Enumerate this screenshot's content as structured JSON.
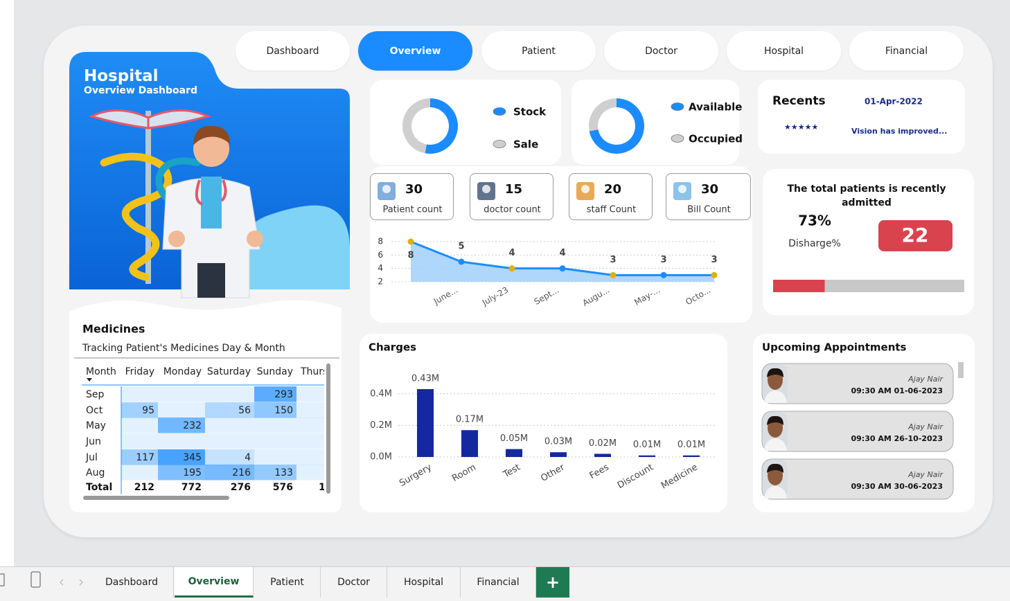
{
  "nav": {
    "tabs": [
      "Dashboard",
      "Overview",
      "Patient",
      "Doctor",
      "Hospital",
      "Financial"
    ],
    "active": 1
  },
  "hero": {
    "title": "Hospital",
    "subtitle": "Overview Dashboard"
  },
  "stock_donut": {
    "type": "donut",
    "categories": [
      "Stock",
      "Sale"
    ],
    "values": [
      53,
      47
    ],
    "colors": [
      "#1a8cff",
      "#cfcfcf"
    ]
  },
  "bed_donut": {
    "type": "donut",
    "categories": [
      "Available",
      "Occupied"
    ],
    "values": [
      72,
      28
    ],
    "colors": [
      "#1a8cff",
      "#cfcfcf"
    ]
  },
  "recents": {
    "title": "Recents",
    "date": "01-Apr-2022",
    "rating": "★★★★★",
    "note": "Vision has improved..."
  },
  "kpis": [
    {
      "value": 30,
      "label": "Patient count"
    },
    {
      "value": 15,
      "label": "doctor count"
    },
    {
      "value": 20,
      "label": "staff Count"
    },
    {
      "value": 30,
      "label": "Bill Count"
    }
  ],
  "trend_chart": {
    "type": "line",
    "categories": [
      null,
      "June...",
      "July-23",
      "Sept...",
      "Augu...",
      "May-...",
      "Octo..."
    ],
    "values": [
      8,
      5,
      4,
      4,
      3,
      3,
      3
    ],
    "color": "#1a8cff",
    "point_colors": [
      "#e0b000",
      "#1a8cff",
      "#e0b000",
      "#1a8cff",
      "#e0b000",
      "#1a8cff",
      "#e0b000"
    ],
    "ylim": [
      2,
      8
    ],
    "yticks": [
      2,
      4,
      6,
      8
    ],
    "grid": true
  },
  "admitted": {
    "title": "The total patients is recently admitted",
    "rate": "73%",
    "rate_label": "Disharge%",
    "count": 22,
    "progress": 27
  },
  "medicines": {
    "title": "Medicines",
    "subtitle": "Tracking Patient's Medicines Day & Month",
    "columns": [
      "Month",
      "Friday",
      "Monday",
      "Saturday",
      "Sunday",
      "Thurs"
    ],
    "rows": [
      [
        "Sep",
        null,
        null,
        null,
        293,
        null
      ],
      [
        "Oct",
        95,
        null,
        56,
        150,
        null
      ],
      [
        "May",
        null,
        232,
        null,
        null,
        null
      ],
      [
        "Jun",
        null,
        null,
        null,
        null,
        null
      ],
      [
        "Jul",
        117,
        345,
        4,
        null,
        null
      ],
      [
        "Aug",
        null,
        195,
        216,
        133,
        null
      ]
    ],
    "total": [
      "Total",
      212,
      772,
      276,
      576,
      "1"
    ]
  },
  "charges_chart": {
    "type": "bar",
    "title": "Charges",
    "categories": [
      "Surgery",
      "Room",
      "Test",
      "Other",
      "Fees",
      "Discount",
      "Medicine"
    ],
    "values": [
      430000,
      170000,
      50000,
      30000,
      20000,
      10000,
      10000
    ],
    "value_labels": [
      "0.43M",
      "0.17M",
      "0.05M",
      "0.03M",
      "0.02M",
      "0.01M",
      "0.01M"
    ],
    "color": "#1428a0",
    "ylim": [
      0,
      500000
    ],
    "yticks": [
      {
        "value": 0,
        "label": "0.0M"
      },
      {
        "value": 200000,
        "label": "0.2M"
      },
      {
        "value": 400000,
        "label": "0.4M"
      }
    ],
    "grid": true
  },
  "appointments": {
    "title": "Upcoming Appointments",
    "items": [
      {
        "name": "Ajay Nair",
        "time": "09:30 AM 01-06-2023"
      },
      {
        "name": "Ajay Nair",
        "time": "09:30 AM 26-10-2023"
      },
      {
        "name": "Ajay Nair",
        "time": "09:30 AM 30-06-2023"
      }
    ]
  },
  "sheet_tabs": {
    "tabs": [
      "Dashboard",
      "Overview",
      "Patient",
      "Doctor",
      "Hospital",
      "Financial"
    ],
    "active": 1,
    "add": "+"
  }
}
